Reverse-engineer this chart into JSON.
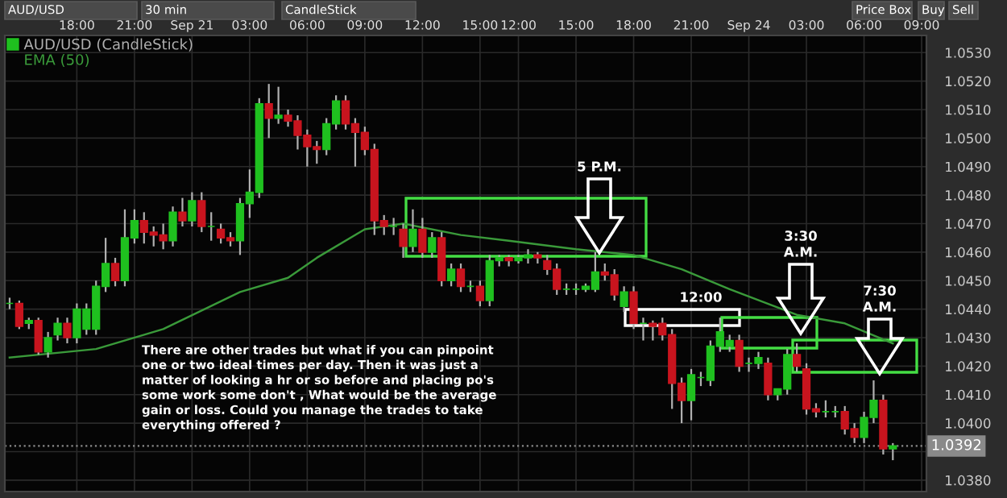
{
  "chart_data": {
    "type": "candlestick",
    "annotations": [
      "AUD/USD",
      "30 min",
      "CandleStick",
      "Price Box",
      "Buy",
      "Sell",
      "12:00",
      "5 P.M.",
      "3:30\nA.M.",
      "7:30\nA.M.",
      "There are other trades but what if you can pinpoint\none or two ideal times per day. Then it was just a\nmatter of looking a hr or so before and placing po's\nsome work some don't , What would be the average\ngain or loss. Could you manage the trades to take\neverything offered ?"
    ],
    "categories": [
      null,
      null,
      null,
      null,
      null,
      null,
      null,
      "18:00",
      null,
      null,
      null,
      null,
      null,
      "21:00",
      null,
      null,
      null,
      null,
      null,
      "Sep 21",
      null,
      null,
      null,
      null,
      null,
      "03:00",
      null,
      null,
      null,
      null,
      null,
      "06:00",
      null,
      null,
      null,
      null,
      null,
      "09:00",
      null,
      null,
      null,
      null,
      null,
      "12:00",
      null,
      null,
      null,
      null,
      null,
      "15:00",
      null,
      null,
      null,
      "12:00",
      null,
      null,
      null,
      null,
      null,
      "15:00",
      null,
      null,
      null,
      null,
      null,
      "18:00",
      null,
      null,
      null,
      null,
      null,
      "21:00",
      null,
      null,
      null,
      null,
      null,
      "Sep 24",
      null,
      null,
      null,
      null,
      null,
      "03:00",
      null,
      null,
      null,
      null,
      null,
      "06:00",
      null,
      null,
      null,
      null,
      null,
      "09:00"
    ],
    "series": [
      {
        "name": "AUD/USD (CandleStick)",
        "ohlc": [
          [
            1.0442,
            1.0444,
            1.044,
            1.0442
          ],
          [
            1.0442,
            1.0443,
            1.0433,
            1.0434
          ],
          [
            1.0435,
            1.0437,
            1.0433,
            1.0436
          ],
          [
            1.0436,
            1.0437,
            1.0424,
            1.0425
          ],
          [
            1.0425,
            1.0432,
            1.0423,
            1.043
          ],
          [
            1.0431,
            1.0437,
            1.0429,
            1.0435
          ],
          [
            1.0435,
            1.0437,
            1.0428,
            1.043
          ],
          [
            1.043,
            1.0442,
            1.0428,
            1.044
          ],
          [
            1.0433,
            1.0442,
            1.0431,
            1.044
          ],
          [
            1.0433,
            1.045,
            1.0431,
            1.0448
          ],
          [
            1.0448,
            1.0465,
            1.0446,
            1.0456
          ],
          [
            1.0456,
            1.0458,
            1.0448,
            1.045
          ],
          [
            1.045,
            1.0475,
            1.0448,
            1.0465
          ],
          [
            1.0465,
            1.0475,
            1.0463,
            1.0471
          ],
          [
            1.0471,
            1.0474,
            1.0463,
            1.0467
          ],
          [
            1.0467,
            1.0469,
            1.0462,
            1.0466
          ],
          [
            1.0466,
            1.047,
            1.0461,
            1.0464
          ],
          [
            1.0464,
            1.0476,
            1.0462,
            1.0474
          ],
          [
            1.0474,
            1.0479,
            1.0469,
            1.0471
          ],
          [
            1.0471,
            1.0481,
            1.0469,
            1.0478
          ],
          [
            1.0478,
            1.0481,
            1.0467,
            1.0469
          ],
          [
            1.0469,
            1.0474,
            1.0464,
            1.0469
          ],
          [
            1.0468,
            1.047,
            1.0463,
            1.0465
          ],
          [
            1.0465,
            1.0467,
            1.0462,
            1.0464
          ],
          [
            1.0464,
            1.0479,
            1.0459,
            1.0477
          ],
          [
            1.0477,
            1.0489,
            1.0472,
            1.0481
          ],
          [
            1.0481,
            1.0514,
            1.0479,
            1.0512
          ],
          [
            1.0512,
            1.0519,
            1.05,
            1.0507
          ],
          [
            1.0507,
            1.0518,
            1.0505,
            1.0508
          ],
          [
            1.0508,
            1.051,
            1.0504,
            1.0506
          ],
          [
            1.0506,
            1.0508,
            1.0496,
            1.0501
          ],
          [
            1.0501,
            1.0503,
            1.049,
            1.0497
          ],
          [
            1.0497,
            1.0499,
            1.0491,
            1.0496
          ],
          [
            1.0496,
            1.0507,
            1.0494,
            1.0505
          ],
          [
            1.0505,
            1.0515,
            1.0503,
            1.0513
          ],
          [
            1.0513,
            1.0515,
            1.0503,
            1.0505
          ],
          [
            1.0505,
            1.0507,
            1.049,
            1.0502
          ],
          [
            1.0502,
            1.0504,
            1.0494,
            1.0496
          ],
          [
            1.0496,
            1.0498,
            1.0466,
            1.0471
          ],
          [
            1.0471,
            1.0473,
            1.0466,
            1.0469
          ],
          [
            1.0469,
            1.0472,
            1.0466,
            1.0469
          ],
          [
            1.0468,
            1.047,
            1.0458,
            1.0462
          ],
          [
            1.0462,
            1.0475,
            1.046,
            1.0468
          ],
          [
            1.0468,
            1.0472,
            1.0458,
            1.046
          ],
          [
            1.046,
            1.0467,
            1.0458,
            1.0465
          ],
          [
            1.0465,
            1.0467,
            1.0448,
            1.045
          ],
          [
            1.045,
            1.0456,
            1.0448,
            1.0454
          ],
          [
            1.0454,
            1.0456,
            1.0446,
            1.0448
          ],
          [
            1.0448,
            1.045,
            1.0446,
            1.0448
          ],
          [
            1.0448,
            1.045,
            1.0441,
            1.0443
          ],
          [
            1.0443,
            1.0459,
            1.0441,
            1.0457
          ],
          [
            1.0457,
            1.0459,
            1.0455,
            1.0458
          ],
          [
            1.0458,
            1.0459,
            1.0455,
            1.0457
          ],
          [
            1.0457,
            1.0459,
            1.0456,
            1.0458
          ],
          [
            1.0458,
            1.0461,
            1.0456,
            1.0459
          ],
          [
            1.0459,
            1.046,
            1.0456,
            1.0458
          ],
          [
            1.0457,
            1.0459,
            1.0452,
            1.0454
          ],
          [
            1.0454,
            1.0456,
            1.0445,
            1.0447
          ],
          [
            1.0447,
            1.0449,
            1.0445,
            1.0447
          ],
          [
            1.0447,
            1.0449,
            1.0445,
            1.0447
          ],
          [
            1.0447,
            1.0449,
            1.0446,
            1.0448
          ],
          [
            1.0447,
            1.046,
            1.0446,
            1.0453
          ],
          [
            1.0453,
            1.0456,
            1.045,
            1.0452
          ],
          [
            1.0452,
            1.0454,
            1.0443,
            1.0445
          ],
          [
            1.0441,
            1.0448,
            1.0439,
            1.0446
          ],
          [
            1.0446,
            1.0448,
            1.0433,
            1.0435
          ],
          [
            1.0435,
            1.0437,
            1.0429,
            1.0435
          ],
          [
            1.0435,
            1.0436,
            1.0429,
            1.0434
          ],
          [
            1.0435,
            1.0437,
            1.0429,
            1.0431
          ],
          [
            1.0431,
            1.0433,
            1.0405,
            1.0414
          ],
          [
            1.0414,
            1.0416,
            1.04,
            1.0408
          ],
          [
            1.0408,
            1.0419,
            1.0401,
            1.0417
          ],
          [
            1.0416,
            1.0418,
            1.0413,
            1.0416
          ],
          [
            1.0415,
            1.0429,
            1.0413,
            1.0427
          ],
          [
            1.0427,
            1.0437,
            1.0425,
            1.0432
          ],
          [
            1.0427,
            1.0431,
            1.0425,
            1.0429
          ],
          [
            1.0429,
            1.0431,
            1.0418,
            1.042
          ],
          [
            1.0421,
            1.0423,
            1.0418,
            1.0421
          ],
          [
            1.0421,
            1.0425,
            1.0419,
            1.0423
          ],
          [
            1.0421,
            1.0423,
            1.0408,
            1.041
          ],
          [
            1.041,
            1.0412,
            1.0408,
            1.0412
          ],
          [
            1.0412,
            1.0426,
            1.041,
            1.0424
          ],
          [
            1.0424,
            1.0428,
            1.0418,
            1.042
          ],
          [
            1.0419,
            1.0421,
            1.0403,
            1.0405
          ],
          [
            1.0405,
            1.0407,
            1.0402,
            1.0404
          ],
          [
            1.0404,
            1.0408,
            1.0402,
            1.0404
          ],
          [
            1.0404,
            1.0406,
            1.0402,
            1.0404
          ],
          [
            1.0404,
            1.0406,
            1.0396,
            1.0398
          ],
          [
            1.0398,
            1.04,
            1.0393,
            1.0395
          ],
          [
            1.0395,
            1.0404,
            1.0393,
            1.0402
          ],
          [
            1.0402,
            1.0415,
            1.04,
            1.0408
          ],
          [
            1.0408,
            1.041,
            1.0389,
            1.0391
          ],
          [
            1.0391,
            1.0393,
            1.0387,
            1.0392
          ],
          null,
          null,
          null
        ],
        "colors": [
          "#1fc01f",
          "#c8141e",
          "#1fc01f",
          "#c8141e",
          "#1fc01f",
          "#1fc01f",
          "#c8141e",
          "#1fc01f",
          "#1fc01f",
          "#1fc01f",
          "#1fc01f",
          "#c8141e",
          "#1fc01f",
          "#1fc01f",
          "#c8141e",
          "#c8141e",
          "#c8141e",
          "#1fc01f",
          "#c8141e",
          "#1fc01f",
          "#c8141e",
          "#1fc01f",
          "#c8141e",
          "#c8141e",
          "#1fc01f",
          "#1fc01f",
          "#1fc01f",
          "#c8141e",
          "#1fc01f",
          "#c8141e",
          "#c8141e",
          "#c8141e",
          "#c8141e",
          "#1fc01f",
          "#1fc01f",
          "#c8141e",
          "#c8141e",
          "#c8141e",
          "#c8141e",
          "#c8141e",
          "#1fc01f",
          "#c8141e",
          "#1fc01f",
          "#c8141e",
          "#1fc01f",
          "#c8141e",
          "#1fc01f",
          "#c8141e",
          "#1fc01f",
          "#c8141e",
          "#1fc01f",
          "#1fc01f",
          "#c8141e",
          "#1fc01f",
          "#1fc01f",
          "#c8141e",
          "#c8141e",
          "#c8141e",
          "#1fc01f",
          "#1fc01f",
          "#1fc01f",
          "#1fc01f",
          "#c8141e",
          "#c8141e",
          "#1fc01f",
          "#c8141e",
          "#1fc01f",
          "#c8141e",
          "#c8141e",
          "#c8141e",
          "#c8141e",
          "#1fc01f",
          "#1fc01f",
          "#1fc01f",
          "#1fc01f",
          "#1fc01f",
          "#c8141e",
          "#1fc01f",
          "#1fc01f",
          "#c8141e",
          "#1fc01f",
          "#1fc01f",
          "#c8141e",
          "#c8141e",
          "#c8141e",
          "#1fc01f",
          "#1fc01f",
          "#c8141e",
          "#c8141e",
          "#1fc01f",
          "#1fc01f",
          "#c8141e",
          "#1fc01f",
          null,
          null,
          null
        ],
        "color": "#b0b0b0"
      },
      {
        "name": "EMA (50)",
        "type": "line",
        "color": "#3a9a3a",
        "values": [
          1.0423,
          null,
          null,
          null,
          null,
          null,
          null,
          null,
          null,
          1.0426,
          null,
          null,
          null,
          null,
          null,
          null,
          1.0433,
          null,
          null,
          null,
          null,
          null,
          null,
          null,
          1.0446,
          null,
          null,
          null,
          null,
          1.0451,
          null,
          null,
          1.0458,
          null,
          null,
          null,
          null,
          1.0468,
          null,
          null,
          null,
          1.047,
          null,
          null,
          null,
          null,
          null,
          1.0466,
          null,
          null,
          null,
          null,
          1.0464,
          null,
          null,
          null,
          null,
          null,
          null,
          1.0461,
          null,
          null,
          null,
          null,
          null,
          1.0459,
          null,
          null,
          null,
          null,
          1.0454,
          null,
          null,
          null,
          null,
          1.0447,
          null,
          null,
          null,
          null,
          null,
          null,
          1.0438,
          null,
          null,
          null,
          null,
          1.0435,
          null,
          null,
          null,
          null,
          1.0428,
          null,
          null,
          null
        ]
      }
    ],
    "ylim": [
      1.0376,
      1.0536
    ],
    "yticks": [
      {
        "value": 1.038,
        "label": "1.0380"
      },
      {
        "value": 1.039,
        "label": null
      },
      {
        "value": 1.04,
        "label": "1.0400"
      },
      {
        "value": 1.041,
        "label": "1.0410"
      },
      {
        "value": 1.042,
        "label": "1.0420"
      },
      {
        "value": 1.043,
        "label": "1.0430"
      },
      {
        "value": 1.044,
        "label": "1.0440"
      },
      {
        "value": 1.045,
        "label": "1.0450"
      },
      {
        "value": 1.046,
        "label": "1.0460"
      },
      {
        "value": 1.047,
        "label": "1.0470"
      },
      {
        "value": 1.048,
        "label": "1.0480"
      },
      {
        "value": 1.049,
        "label": "1.0490"
      },
      {
        "value": 1.05,
        "label": "1.0500"
      },
      {
        "value": 1.051,
        "label": "1.0510"
      },
      {
        "value": 1.052,
        "label": "1.0520"
      },
      {
        "value": 1.053,
        "label": "1.0530"
      }
    ],
    "ref_lines": [
      {
        "axis": "y",
        "value": 1.0392,
        "label": "1.0392",
        "color": "#8a8a8a",
        "line_style": "dotted"
      }
    ],
    "grid": true,
    "legend": "top left",
    "marker": "none",
    "line_style": "solid"
  }
}
